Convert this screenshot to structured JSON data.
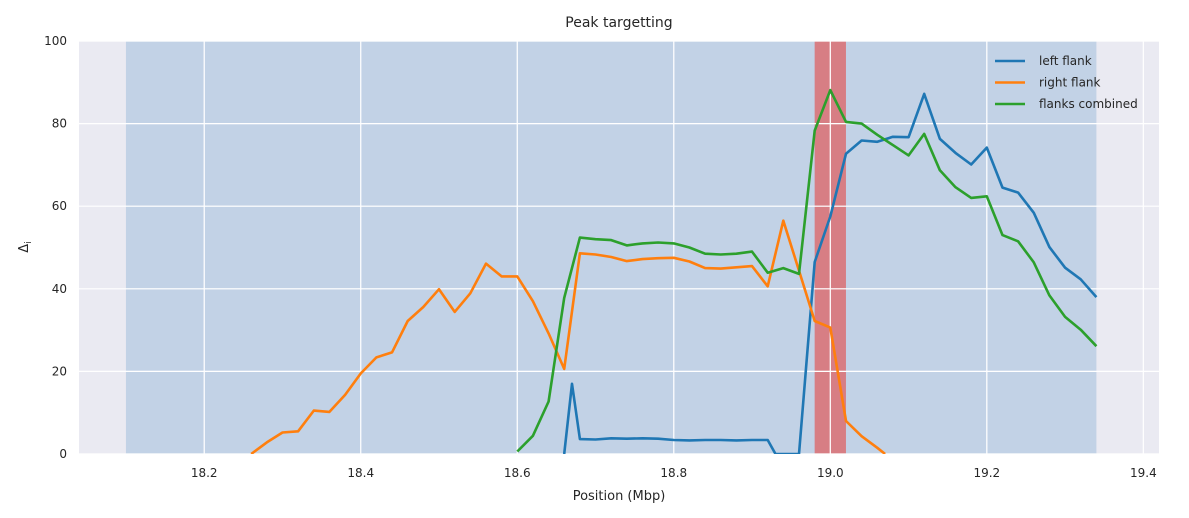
{
  "chart_data": {
    "type": "line",
    "title": "Peak targetting",
    "xlabel": "Position (Mbp)",
    "ylabel": "Δ",
    "ylabel_subscript": "i",
    "xlim": [
      18.04,
      19.42
    ],
    "ylim": [
      0,
      100
    ],
    "xticks": [
      18.2,
      18.4,
      18.6,
      18.8,
      19.0,
      19.2,
      19.4
    ],
    "xtick_labels": [
      "18.2",
      "18.4",
      "18.6",
      "18.8",
      "19.0",
      "19.2",
      "19.4"
    ],
    "yticks": [
      0,
      20,
      40,
      60,
      80,
      100
    ],
    "ytick_labels": [
      "0",
      "20",
      "40",
      "60",
      "80",
      "100"
    ],
    "grid": true,
    "legend_position": "top-right",
    "shaded_regions": [
      {
        "x0": 18.1,
        "x1": 19.34,
        "color": "#a9c4df",
        "opacity": 0.62
      },
      {
        "x0": 18.98,
        "x1": 19.02,
        "color": "#e05a5a",
        "opacity": 0.7
      }
    ],
    "series": [
      {
        "name": "left flank",
        "color": "#1f77b4",
        "x": [
          18.66,
          18.67,
          18.68,
          18.7,
          18.72,
          18.74,
          18.76,
          18.78,
          18.8,
          18.82,
          18.84,
          18.86,
          18.88,
          18.9,
          18.92,
          18.93,
          18.96,
          18.98,
          19.0,
          19.02,
          19.04,
          19.06,
          19.08,
          19.1,
          19.12,
          19.14,
          19.16,
          19.18,
          19.2,
          19.22,
          19.24,
          19.26,
          19.28,
          19.3,
          19.32,
          19.34
        ],
        "values": [
          0,
          17,
          3.6,
          3.5,
          3.8,
          3.7,
          3.8,
          3.7,
          3.4,
          3.3,
          3.4,
          3.4,
          3.3,
          3.4,
          3.4,
          0,
          0,
          46.5,
          57.5,
          72.7,
          75.9,
          75.6,
          76.8,
          76.7,
          87.2,
          76.3,
          72.9,
          70.1,
          74.2,
          64.5,
          63.3,
          58.4,
          50.1,
          45.1,
          42.3,
          38
        ]
      },
      {
        "name": "right flank",
        "color": "#ff7f0e",
        "x": [
          18.26,
          18.28,
          18.3,
          18.32,
          18.34,
          18.36,
          18.38,
          18.4,
          18.42,
          18.44,
          18.46,
          18.48,
          18.5,
          18.52,
          18.54,
          18.56,
          18.58,
          18.6,
          18.62,
          18.64,
          18.66,
          18.68,
          18.7,
          18.72,
          18.74,
          18.76,
          18.78,
          18.8,
          18.82,
          18.84,
          18.86,
          18.88,
          18.9,
          18.92,
          18.94,
          18.96,
          18.98,
          19.0,
          19.02,
          19.04,
          19.06,
          19.07
        ],
        "values": [
          0,
          2.8,
          5.2,
          5.5,
          10.5,
          10.2,
          14.3,
          19.5,
          23.4,
          24.6,
          32.2,
          35.6,
          39.9,
          34.4,
          38.9,
          46.1,
          43,
          43,
          37,
          29.2,
          20.6,
          48.6,
          48.3,
          47.7,
          46.7,
          47.2,
          47.4,
          47.5,
          46.6,
          45,
          44.9,
          45.2,
          45.5,
          40.6,
          56.5,
          44.4,
          32.2,
          30.6,
          8,
          4.3,
          1.5,
          0
        ]
      },
      {
        "name": "flanks combined",
        "color": "#2ca02c",
        "x": [
          18.6,
          18.62,
          18.64,
          18.66,
          18.68,
          18.7,
          18.72,
          18.74,
          18.76,
          18.78,
          18.8,
          18.82,
          18.84,
          18.86,
          18.88,
          18.9,
          18.92,
          18.94,
          18.96,
          18.98,
          19.0,
          19.02,
          19.04,
          19.06,
          19.08,
          19.1,
          19.12,
          19.14,
          19.16,
          19.18,
          19.2,
          19.22,
          19.24,
          19.26,
          19.28,
          19.3,
          19.32,
          19.34
        ],
        "values": [
          0.6,
          4.4,
          12.7,
          37.8,
          52.4,
          52,
          51.8,
          50.5,
          51,
          51.2,
          51,
          50,
          48.5,
          48.3,
          48.5,
          49,
          43.9,
          45,
          43.6,
          78.3,
          88.1,
          80.4,
          80,
          77.3,
          74.8,
          72.3,
          77.5,
          68.7,
          64.6,
          62,
          62.4,
          53,
          51.5,
          46.4,
          38.4,
          33.2,
          30.1,
          26.1
        ]
      }
    ]
  }
}
